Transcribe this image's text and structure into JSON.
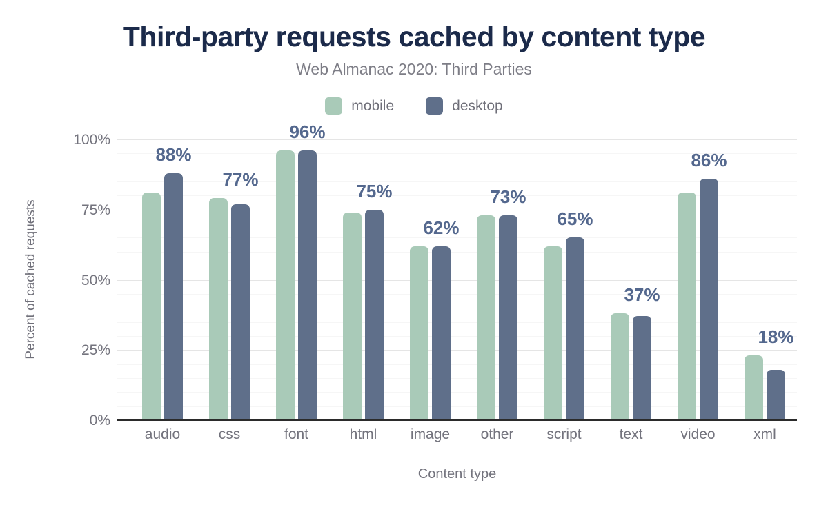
{
  "header": {
    "title": "Third-party requests cached by content type",
    "subtitle": "Web Almanac 2020: Third Parties"
  },
  "legend": {
    "items": [
      {
        "label": "mobile",
        "color": "#a9cab8"
      },
      {
        "label": "desktop",
        "color": "#5f6f8a"
      }
    ]
  },
  "chart_data": {
    "type": "bar",
    "title": "Third-party requests cached by content type",
    "subtitle": "Web Almanac 2020: Third Parties",
    "categories": [
      "audio",
      "css",
      "font",
      "html",
      "image",
      "other",
      "script",
      "text",
      "video",
      "xml"
    ],
    "series": [
      {
        "name": "mobile",
        "color": "#a9cab8",
        "values": [
          81,
          79,
          96,
          74,
          62,
          73,
          62,
          38,
          81,
          23
        ]
      },
      {
        "name": "desktop",
        "color": "#5f6f8a",
        "values": [
          88,
          77,
          96,
          75,
          62,
          73,
          65,
          37,
          86,
          18
        ]
      }
    ],
    "data_labels": [
      "88%",
      "77%",
      "96%",
      "75%",
      "62%",
      "73%",
      "65%",
      "37%",
      "86%",
      "18%"
    ],
    "data_labels_series": "desktop",
    "xlabel": "Content type",
    "ylabel": "Percent of cached requests",
    "ylim": [
      0,
      100
    ],
    "yticks": [
      {
        "value": 0,
        "label": "0%"
      },
      {
        "value": 25,
        "label": "25%"
      },
      {
        "value": 50,
        "label": "50%"
      },
      {
        "value": 75,
        "label": "75%"
      },
      {
        "value": 100,
        "label": "100%"
      }
    ],
    "minor_grid_step": 5,
    "grid": "on",
    "legend_position": "top-center"
  },
  "colors": {
    "title": "#1b2a4a",
    "subtitle": "#7d7d86",
    "data_label": "#54688e",
    "axis_text": "#73737d",
    "major_grid": "#e5e5e5",
    "minor_grid": "#f6f6f6",
    "axis_line": "#2b2b2b",
    "background": "#ffffff"
  }
}
